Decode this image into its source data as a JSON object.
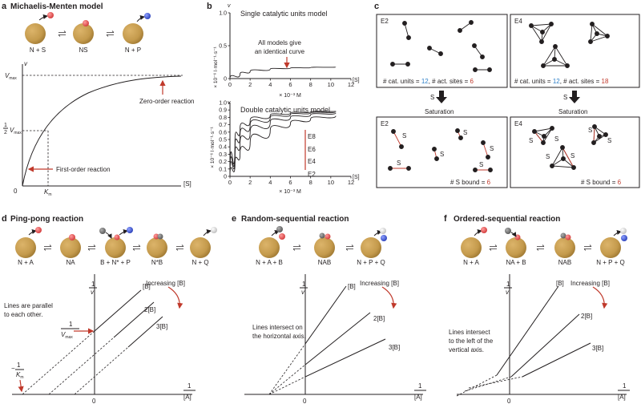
{
  "colors": {
    "enzyme": "#c49a4c",
    "enzyme_dark": "#a27b34",
    "substrate_red": "#e05050",
    "product_blue": "#3b55c8",
    "grey_ball": "#6e6e6e",
    "light_ball": "#d8d8d8",
    "accent_red": "#c0392b",
    "accent_blue": "#2f80c8"
  },
  "panel_a": {
    "letter": "a",
    "title": "Michaelis-Menten model",
    "species": [
      "N + S",
      "NS",
      "N + P"
    ],
    "ylabel": "v",
    "xlabel": "[S]",
    "vmax_label": "V",
    "vmax_sub": "max",
    "half_num": "1",
    "half_den": "2",
    "half_v": "V",
    "half_sub": "max",
    "km_label": "K",
    "km_sub": "m",
    "origin": "0",
    "zero_order": "Zero-order reaction",
    "first_order": "First-order reaction"
  },
  "panel_b": {
    "letter": "b",
    "top": {
      "title": "Single catalytic units model",
      "annotation_line1": "All models give",
      "annotation_line2": "an identical curve"
    },
    "bottom": {
      "title": "Double catalytic units model",
      "curve_labels": [
        "E8",
        "E6",
        "E4",
        "E2"
      ]
    },
    "ylabel_top": "× 10⁻⁶ l·mol⁻¹·s⁻¹",
    "ylabel_bottom": "× 10⁻⁶ l·mol⁻¹·s⁻¹",
    "v_label": "v",
    "s_label": "[S]",
    "xunit": "× 10⁻³ M"
  },
  "panel_c": {
    "letter": "c",
    "e2_label": "E2",
    "e4_label": "E4",
    "cat_units_prefix": "# cat. units = ",
    "cat_units": "12",
    "act_sites_prefix": "#  act. sites = ",
    "e2_sites": "6",
    "e4_sites": "18",
    "arrow_s": "S",
    "saturation": "Saturation",
    "s_bound_prefix": "# S bound = ",
    "e2_bound": "6",
    "e4_bound": "6",
    "s": "S"
  },
  "panel_d": {
    "letter": "d",
    "title": "Ping-pong reaction",
    "species": [
      "N + A",
      "NA",
      "B + N* + P",
      "N*B",
      "N + Q"
    ],
    "increasing": "Increasing [B]",
    "line_labels": [
      "[B]",
      "2[B]",
      "3[B]"
    ],
    "note_line1": "Lines are parallel",
    "note_line2": "to each other.",
    "yl_num": "1",
    "yl_den": "v",
    "xl_num": "1",
    "xl_den": "[A]",
    "origin": "0",
    "yint_num": "1",
    "yint_den": "V",
    "yint_sub": "max",
    "xint_sign": "−",
    "xint_num": "1",
    "xint_den": "K",
    "xint_sub": "m"
  },
  "panel_e": {
    "letter": "e",
    "title": "Random-sequential reaction",
    "species": [
      "N + A + B",
      "NAB",
      "N + P + Q"
    ],
    "increasing": "Increasing [B]",
    "line_labels": [
      "[B]",
      "2[B]",
      "3[B]"
    ],
    "note_line1": "Lines intersect on",
    "note_line2": "the horizontal axis.",
    "yl_num": "1",
    "yl_den": "v",
    "xl_num": "1",
    "xl_den": "[A]",
    "origin": "0"
  },
  "panel_f": {
    "letter": "f",
    "title": "Ordered-sequential reaction",
    "species": [
      "N + A",
      "NA + B",
      "NAB",
      "N + P + Q"
    ],
    "increasing": "Increasing [B]",
    "line_labels": [
      "[B]",
      "2[B]",
      "3[B]"
    ],
    "note_line1": "Lines intersect",
    "note_line2": "to the left of the",
    "note_line3": "vertical axis.",
    "yl_num": "1",
    "yl_den": "v",
    "xl_num": "1",
    "xl_den": "[A]",
    "origin": "0"
  },
  "chart_data": [
    {
      "type": "line",
      "title": "Single catalytic units model",
      "xlabel": "× 10⁻³ M",
      "ylabel": "v (× 10⁻⁶ l·mol⁻¹·s⁻¹)",
      "xlim": [
        0,
        12
      ],
      "ylim": [
        0,
        1.0
      ],
      "xticks": [
        "0",
        "2",
        "4",
        "6",
        "8",
        "10",
        "12"
      ],
      "yticks": [
        "0",
        "0.5",
        "1.0"
      ],
      "series": [
        {
          "name": "all models",
          "x": [
            0,
            1,
            2,
            4,
            6,
            8,
            10.5
          ],
          "y": [
            0,
            0.07,
            0.11,
            0.145,
            0.16,
            0.168,
            0.175
          ]
        }
      ]
    },
    {
      "type": "line",
      "title": "Double catalytic units model",
      "xlabel": "× 10⁻³ M",
      "ylabel": "v (× 10⁻⁶ l·mol⁻¹·s⁻¹)",
      "xlim": [
        0,
        12
      ],
      "ylim": [
        0,
        1.0
      ],
      "xticks": [
        "0",
        "2",
        "4",
        "6",
        "8",
        "10",
        "12"
      ],
      "yticks": [
        "0",
        "0.1",
        "0.2",
        "0.3",
        "0.4",
        "0.5",
        "0.6",
        "0.7",
        "0.8",
        "0.9",
        "1.0"
      ],
      "series": [
        {
          "name": "E8",
          "x": [
            0,
            0.5,
            1,
            2,
            4,
            6,
            8,
            10.5
          ],
          "y": [
            0,
            0.5,
            0.65,
            0.76,
            0.83,
            0.86,
            0.875,
            0.885
          ]
        },
        {
          "name": "E6",
          "x": [
            0,
            0.5,
            1,
            2,
            4,
            6,
            8,
            10.5
          ],
          "y": [
            0,
            0.4,
            0.56,
            0.7,
            0.8,
            0.84,
            0.86,
            0.875
          ]
        },
        {
          "name": "E4",
          "x": [
            0,
            0.5,
            1,
            2,
            4,
            6,
            8,
            10.5
          ],
          "y": [
            0,
            0.3,
            0.45,
            0.6,
            0.74,
            0.8,
            0.835,
            0.86
          ]
        },
        {
          "name": "E2",
          "x": [
            0,
            0.5,
            1,
            2,
            4,
            6,
            8,
            10.5
          ],
          "y": [
            0,
            0.18,
            0.3,
            0.46,
            0.63,
            0.72,
            0.78,
            0.82
          ]
        }
      ]
    }
  ]
}
